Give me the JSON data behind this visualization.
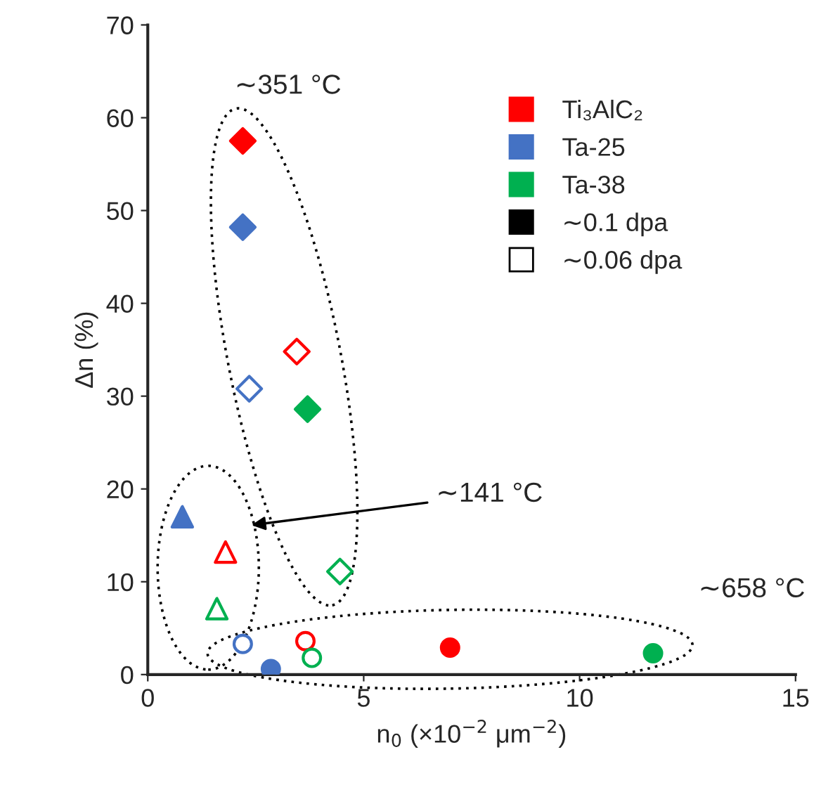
{
  "chart_data": {
    "type": "scatter",
    "xlabel": "n$_{0}$ (×10$^{−2}$ μm$^{−2}$)",
    "ylabel": "Δn (%)",
    "xlim": [
      0,
      15
    ],
    "ylim": [
      0,
      70
    ],
    "xticks": [
      0,
      5,
      10,
      15
    ],
    "yticks": [
      0,
      10,
      20,
      30,
      40,
      50,
      60,
      70
    ],
    "grid": false,
    "legend": "top right",
    "series": [
      {
        "name": "Ti₃AlC₂",
        "color": "#ff0000",
        "marker": "diamond",
        "x": [
          2.2,
          3.45
        ],
        "values": [
          57.5,
          34.8
        ],
        "colors": [
          "#ff0000",
          "#ffffff"
        ]
      },
      {
        "name": "Ta-25",
        "color": "#4472c4",
        "marker": "diamond",
        "x": [
          2.2,
          2.35
        ],
        "values": [
          48.2,
          30.8
        ],
        "colors": [
          "#4472c4",
          "#ffffff"
        ]
      },
      {
        "name": "Ta-38",
        "color": "#00b050",
        "marker": "diamond",
        "x": [
          3.7,
          4.45
        ],
        "values": [
          28.6,
          11.1
        ],
        "colors": [
          "#00b050",
          "#ffffff"
        ]
      },
      {
        "color": "#ff0000",
        "marker": "triangle",
        "x": [
          1.8
        ],
        "values": [
          13.2
        ],
        "colors": [
          "#ffffff"
        ]
      },
      {
        "color": "#4472c4",
        "marker": "triangle",
        "x": [
          0.8
        ],
        "values": [
          17
        ],
        "colors": [
          "#4472c4"
        ]
      },
      {
        "color": "#00b050",
        "marker": "triangle",
        "x": [
          1.6
        ],
        "values": [
          7.1
        ],
        "colors": [
          "#ffffff"
        ]
      },
      {
        "color": "#ff0000",
        "marker": "circle",
        "x": [
          3.65,
          7.0
        ],
        "values": [
          3.6,
          2.9
        ],
        "colors": [
          "#ffffff",
          "#ff0000"
        ]
      },
      {
        "color": "#4472c4",
        "marker": "circle",
        "x": [
          2.2,
          2.85
        ],
        "values": [
          3.3,
          0.6
        ],
        "colors": [
          "#ffffff",
          "#4472c4"
        ]
      },
      {
        "color": "#00b050",
        "marker": "circle",
        "x": [
          3.8,
          11.7
        ],
        "values": [
          1.8,
          2.3
        ],
        "colors": [
          "#ffffff",
          "#00b050"
        ]
      },
      {
        "name": "∼0.1 dpa",
        "color": "#000000",
        "marker": "square"
      },
      {
        "name": "∼0.06 dpa",
        "color": "#ffffff",
        "marker": "square"
      }
    ],
    "annotations": [
      "∼351 °C",
      "∼141 °C",
      "∼658 °C"
    ]
  }
}
